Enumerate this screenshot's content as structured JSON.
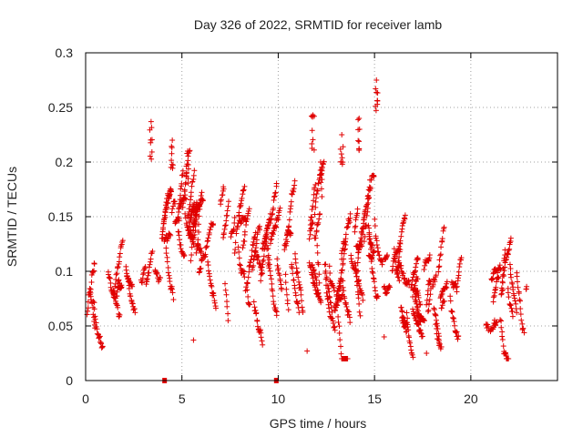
{
  "chart_data": {
    "type": "scatter",
    "title": "Day 326 of 2022, SRMTID for receiver lamb",
    "xlabel": "GPS time / hours",
    "ylabel": "SRMTID / TECUs",
    "xlim": [
      0,
      24.5
    ],
    "ylim": [
      0,
      0.3
    ],
    "x_ticks": [
      0,
      5,
      10,
      15,
      20
    ],
    "x_tick_labels": [
      "0",
      "5",
      "10",
      "15",
      "20"
    ],
    "y_ticks": [
      0,
      0.05,
      0.1,
      0.15,
      0.2,
      0.25,
      0.3
    ],
    "y_tick_labels": [
      "0",
      "0.05",
      "0.1",
      "0.15",
      "0.2",
      "0.25",
      "0.3"
    ],
    "grid": true,
    "marker": "+",
    "series": [
      {
        "name": "SRMTID",
        "color": "#e00000",
        "trend": {
          "x": [
            0.0,
            0.5,
            1.0,
            1.5,
            2.0,
            2.5,
            3.0,
            3.5,
            4.0,
            4.5,
            5.0,
            5.5,
            6.0,
            6.5,
            7.0,
            7.5,
            8.0,
            8.5,
            9.0,
            9.5,
            10.0,
            10.5,
            11.0,
            11.5,
            12.0,
            12.5,
            13.0,
            13.5,
            14.0,
            14.5,
            15.0,
            15.5,
            16.0,
            16.5,
            17.0,
            17.5,
            18.0,
            18.5,
            19.0,
            19.5,
            20.0,
            20.5,
            21.0,
            21.5,
            22.0,
            22.5,
            22.8
          ],
          "y": [
            0.085,
            0.09,
            0.095,
            0.09,
            0.12,
            0.1,
            0.09,
            0.08,
            0.12,
            0.14,
            0.15,
            0.13,
            0.1,
            0.12,
            0.13,
            0.11,
            0.12,
            0.1,
            0.1,
            0.12,
            0.12,
            0.11,
            0.13,
            0.11,
            0.14,
            0.12,
            0.1,
            0.11,
            0.13,
            0.12,
            0.13,
            0.1,
            0.12,
            0.08,
            0.08,
            0.08,
            0.07,
            0.08,
            0.07,
            0.08,
            0.07,
            0.06,
            0.065,
            0.07,
            0.08,
            0.09,
            0.08
          ]
        },
        "spread": 0.03,
        "peaks": [
          {
            "x": 3.4,
            "y": 0.237
          },
          {
            "x": 4.5,
            "y": 0.22
          },
          {
            "x": 5.3,
            "y": 0.21
          },
          {
            "x": 11.8,
            "y": 0.243
          },
          {
            "x": 13.3,
            "y": 0.225
          },
          {
            "x": 14.2,
            "y": 0.24
          },
          {
            "x": 15.1,
            "y": 0.275
          },
          {
            "x": 12.2,
            "y": 0.2
          }
        ],
        "lows": [
          {
            "x": 11.5,
            "y": 0.027
          },
          {
            "x": 17.7,
            "y": 0.025
          },
          {
            "x": 15.5,
            "y": 0.04
          },
          {
            "x": 5.6,
            "y": 0.037
          }
        ],
        "x_range": [
          0.0,
          22.9
        ],
        "point_count": 1800,
        "gaps_at_zero": [
          4.1,
          9.9
        ]
      }
    ]
  }
}
